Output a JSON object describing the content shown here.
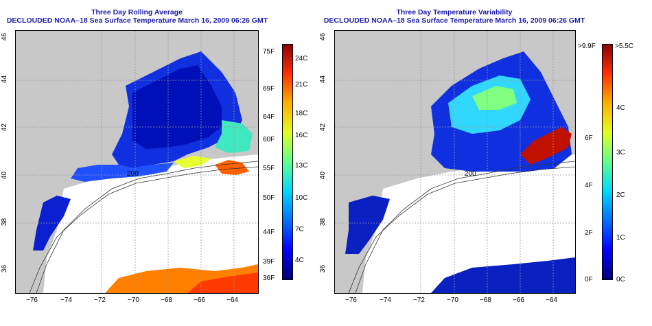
{
  "left_panel": {
    "title_line1": "Three Day Rolling Average",
    "title_line2": "DECLOUDED NOAA–18 Sea Surface Temperature March 16, 2009 06:26 GMT",
    "x_ticks": [
      "−76",
      "−74",
      "−72",
      "−70",
      "−68",
      "−66",
      "−64"
    ],
    "y_ticks": [
      "46",
      "44",
      "42",
      "40",
      "38",
      "36"
    ],
    "contour_label": "200",
    "colorbar": {
      "colors": [
        "#00007a",
        "#0000ff",
        "#0070ff",
        "#00d8ff",
        "#60ff90",
        "#e0ff20",
        "#ffb000",
        "#ff3000",
        "#900000"
      ],
      "left_labels": [
        "75F",
        "69F",
        "64F",
        "60F",
        "55F",
        "50F",
        "44F",
        "39F",
        "36F"
      ],
      "right_labels": [
        "24C",
        "21C",
        "18C",
        "16C",
        "13C",
        "10C",
        "7C",
        "4C"
      ]
    }
  },
  "right_panel": {
    "title_line1": "Three Day Temperature Variability",
    "title_line2": "DECLOUDED NOAA–18 Sea Surface Temperature March 16, 2009 06:26 GMT",
    "x_ticks": [
      "−76",
      "−74",
      "−72",
      "−70",
      "−68",
      "−66",
      "−64"
    ],
    "y_ticks": [
      "46",
      "44",
      "42",
      "40",
      "38",
      "36"
    ],
    "contour_label": "200",
    "colorbar": {
      "colors": [
        "#00007a",
        "#0000ff",
        "#0070ff",
        "#00d8ff",
        "#60ff90",
        "#e0ff20",
        "#ffb000",
        "#ff3000",
        "#900000"
      ],
      "left_labels": [
        ">9.9F",
        "6F",
        "4F",
        "2F",
        "0F"
      ],
      "right_labels": [
        ">5.5C",
        "4C",
        "3C",
        "2C",
        "1C",
        "0C"
      ]
    }
  },
  "colors": {
    "land": "#c8c8c8",
    "title": "#1a1aa8",
    "cloud": "#ffffff"
  }
}
